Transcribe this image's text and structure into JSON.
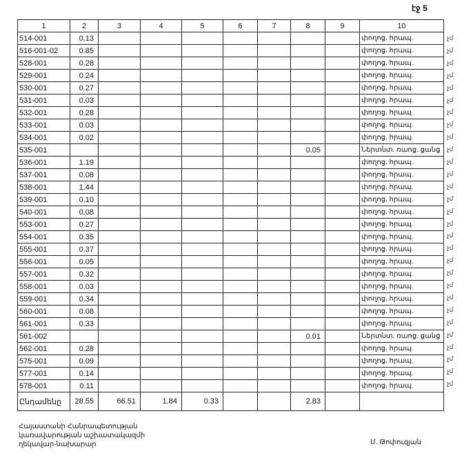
{
  "page_label": "էջ 5",
  "table": {
    "headers": [
      "1",
      "2",
      "3",
      "4",
      "5",
      "6",
      "7",
      "8",
      "9",
      "10"
    ],
    "rows": [
      {
        "code": "514-001",
        "c2": "0.13",
        "c8": "",
        "c10": "փողոց. հրապ."
      },
      {
        "code": "516-001-02",
        "c2": "0.85",
        "c8": "",
        "c10": "փողոց. հրապ."
      },
      {
        "code": "528-001",
        "c2": "0.28",
        "c8": "",
        "c10": "փողոց. հրապ."
      },
      {
        "code": "529-001",
        "c2": "0.24",
        "c8": "",
        "c10": "փողոց. հրապ."
      },
      {
        "code": "530-001",
        "c2": "0.27",
        "c8": "",
        "c10": "փողոց. հրապ."
      },
      {
        "code": "531-001",
        "c2": "0.03",
        "c8": "",
        "c10": "փողոց. հրապ."
      },
      {
        "code": "532-001",
        "c2": "0.28",
        "c8": "",
        "c10": "փողոց. հրապ."
      },
      {
        "code": "533-001",
        "c2": "0.03",
        "c8": "",
        "c10": "փողոց. հրապ."
      },
      {
        "code": "534-001",
        "c2": "0.02",
        "c8": "",
        "c10": "փողոց. հրապ."
      },
      {
        "code": "535-001",
        "c2": "",
        "c8": "0.05",
        "c10": "Ներտնտ. ռաոց. ցանց"
      },
      {
        "code": "536-001",
        "c2": "1.19",
        "c8": "",
        "c10": "փողոց. հրապ."
      },
      {
        "code": "537-001",
        "c2": "0.08",
        "c8": "",
        "c10": "փողոց. հրապ."
      },
      {
        "code": "538-001",
        "c2": "1.44",
        "c8": "",
        "c10": "փողոց. հրապ."
      },
      {
        "code": "539-001",
        "c2": "0.10",
        "c8": "",
        "c10": "փողոց. հրապ."
      },
      {
        "code": "540-001",
        "c2": "0.08",
        "c8": "",
        "c10": "փողոց. հրապ."
      },
      {
        "code": "553-001",
        "c2": "0.27",
        "c8": "",
        "c10": "փողոց. հրապ."
      },
      {
        "code": "554-001",
        "c2": "0.35",
        "c8": "",
        "c10": "փողոց. հրապ."
      },
      {
        "code": "555-001",
        "c2": "0.37",
        "c8": "",
        "c10": "փողոց. հրապ."
      },
      {
        "code": "556-001",
        "c2": "0.05",
        "c8": "",
        "c10": "փողոց. հրապ."
      },
      {
        "code": "557-001",
        "c2": "0.32",
        "c8": "",
        "c10": "փողոց. հրապ."
      },
      {
        "code": "558-001",
        "c2": "0.03",
        "c8": "",
        "c10": "փողոց. հրապ."
      },
      {
        "code": "559-001",
        "c2": "0.34",
        "c8": "",
        "c10": "փողոց. հրապ."
      },
      {
        "code": "560-001",
        "c2": "0.08",
        "c8": "",
        "c10": "փողոց. հրապ."
      },
      {
        "code": "561-001",
        "c2": "0.33",
        "c8": "",
        "c10": "փողոց. հրապ."
      },
      {
        "code": "561-002",
        "c2": "",
        "c8": "0.01",
        "c10": "Ներտնտ. ռաոց. ցանց"
      },
      {
        "code": "562-001",
        "c2": "0.28",
        "c8": "",
        "c10": "փողոց. հրապ."
      },
      {
        "code": "575-001",
        "c2": "0.09",
        "c8": "",
        "c10": "փողոց. հրապ."
      },
      {
        "code": "577-001",
        "c2": "0.14",
        "c8": "",
        "c10": "փողոց. հրապ."
      },
      {
        "code": "578-001",
        "c2": "0.11",
        "c8": "",
        "c10": "փողոց. հրապ."
      }
    ],
    "total": {
      "label": "Ընդամենը",
      "c2": "28.55",
      "c3": "66.51",
      "c4": "1.84",
      "c5": "0.33",
      "c8": "2.83"
    },
    "margin_mark": "չմ"
  },
  "footer": {
    "title_lines": [
      "Հայաստանի Հանրապետության",
      "կառավարության աշխատակազմի",
      "ղեկավար-նախարար"
    ],
    "signer": "Մ. Թոփուզյան"
  }
}
